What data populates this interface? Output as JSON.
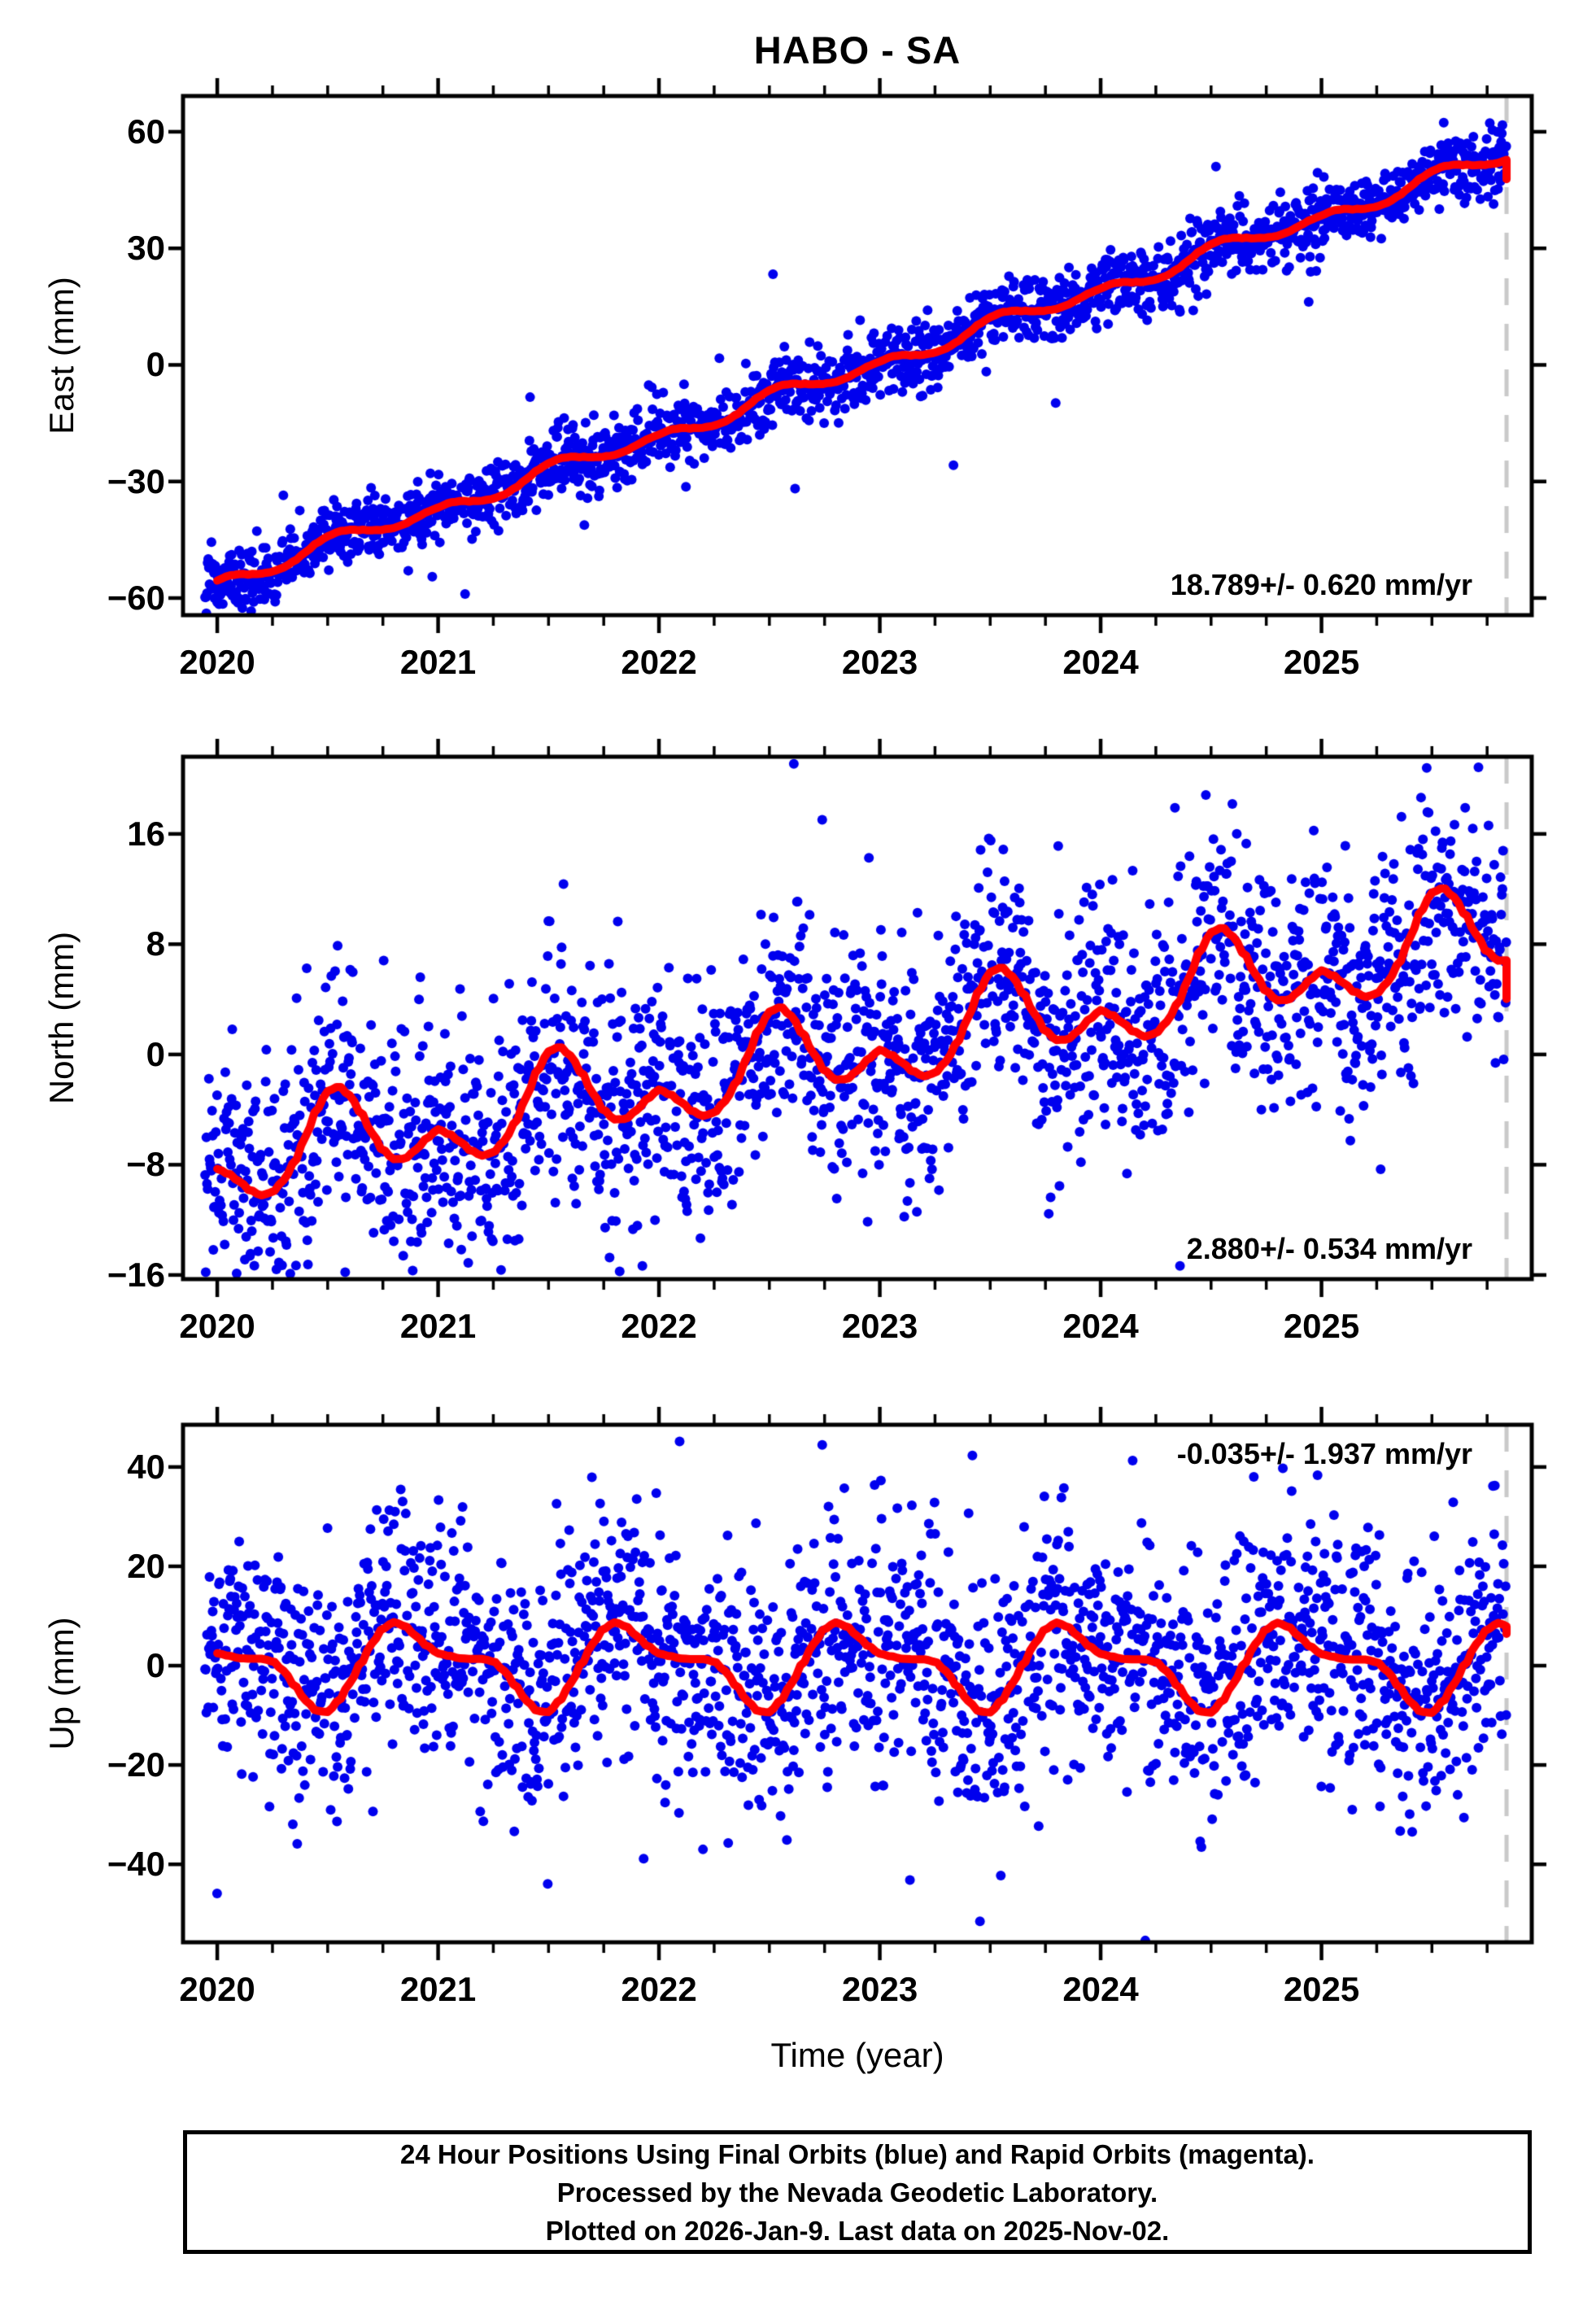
{
  "title": "HABO - SA",
  "xlabel": "Time (year)",
  "caption_lines": [
    "24 Hour Positions Using Final Orbits (blue) and Rapid Orbits (magenta).",
    "Processed by the Nevada Geodetic Laboratory.",
    "Plotted on 2026-Jan-9. Last data on 2025-Nov-02."
  ],
  "colors": {
    "final_orbits_points": "#0000ee",
    "rapid_orbits_points": "#ff00ff",
    "model_curve": "#ff0000",
    "last_data_dashed_line": "#c9c9c9",
    "axis": "#000000",
    "background": "#ffffff"
  },
  "time_axis": {
    "range": [
      2019.845,
      2025.952
    ],
    "major_ticks": [
      2020,
      2021,
      2022,
      2023,
      2024,
      2025
    ],
    "major_tick_labels": [
      "2020",
      "2021",
      "2022",
      "2023",
      "2024",
      "2025"
    ],
    "minor_tick_step_years": 0.25,
    "last_data_time": 2025.838
  },
  "chart_data": [
    {
      "type": "scatter",
      "component": "east",
      "ylabel": "East (mm)",
      "rate_text": "18.789+/- 0.620 mm/yr",
      "rate_mm_per_yr": 18.789,
      "rate_sigma_mm_per_yr": 0.62,
      "rate_label_position": "bottom-right",
      "ylim": [
        -64.4,
        69.2
      ],
      "yticks": [
        60,
        30,
        0,
        -30,
        -60
      ],
      "ytick_labels": [
        "60",
        "30",
        "0",
        "−30",
        "−60"
      ],
      "model_curve": {
        "t_start": 2020.0,
        "t_end": 2025.838,
        "intercept_2020_mm": -55.5,
        "slope_mm_per_yr": 18.789,
        "seasonal_mm": [
          0.0,
          0.3,
          -0.2,
          -1.2,
          -2.0,
          -2.4,
          -2.3,
          -1.5,
          -0.2,
          1.2,
          2.0,
          2.3,
          1.8,
          0.8,
          -0.2,
          -1.0,
          -1.5,
          -1.4,
          -0.8,
          -0.2
        ],
        "end_hook_mm": -5.0
      },
      "scatter": {
        "t_start": 2019.945,
        "t_end": 2025.838,
        "points_per_year": 350,
        "gap_fraction": 0.04,
        "sigma_mm": 4.3,
        "outlier_fraction": 0.013,
        "outlier_scale": 3.4,
        "seed": 101
      }
    },
    {
      "type": "scatter",
      "component": "north",
      "ylabel": "North (mm)",
      "rate_text": "2.880+/- 0.534 mm/yr",
      "rate_mm_per_yr": 2.88,
      "rate_sigma_mm_per_yr": 0.534,
      "rate_label_position": "bottom-right",
      "ylim": [
        -16.3,
        21.6
      ],
      "yticks": [
        16,
        8,
        0,
        -8,
        -16
      ],
      "ytick_labels": [
        "16",
        "8",
        "0",
        "−8",
        "−16"
      ],
      "model_curve": {
        "t_start": 2020.0,
        "t_end": 2025.838,
        "intercept_2020_mm": -8.3,
        "slope_mm_per_yr": 2.88,
        "seasonal_mm": [
          0.0,
          -0.5,
          -1.2,
          -2.0,
          -2.5,
          -2.4,
          -1.7,
          -0.5,
          1.2,
          3.0,
          4.2,
          4.4,
          3.6,
          2.2,
          0.6,
          -0.8,
          -1.6,
          -1.7,
          -1.2,
          -0.5
        ],
        "end_hook_mm": -2.8
      },
      "scatter": {
        "t_start": 2019.945,
        "t_end": 2025.838,
        "points_per_year": 350,
        "gap_fraction": 0.04,
        "sigma_mm": 4.4,
        "outlier_fraction": 0.015,
        "outlier_scale": 2.8,
        "seed": 202
      }
    },
    {
      "type": "scatter",
      "component": "up",
      "ylabel": "Up (mm)",
      "rate_text": "-0.035+/- 1.937 mm/yr",
      "rate_mm_per_yr": -0.035,
      "rate_sigma_mm_per_yr": 1.937,
      "rate_label_position": "top-right",
      "ylim": [
        -55.7,
        48.5
      ],
      "yticks": [
        40,
        20,
        0,
        -20,
        -40
      ],
      "ytick_labels": [
        "40",
        "20",
        "0",
        "−20",
        "−40"
      ],
      "model_curve": {
        "t_start": 2020.0,
        "t_end": 2025.838,
        "intercept_2020_mm": 0.5,
        "slope_mm_per_yr": -0.035,
        "seasonal_mm": [
          2.0,
          1.5,
          1.0,
          0.9,
          0.9,
          0.4,
          -1.5,
          -4.5,
          -7.5,
          -9.6,
          -9.8,
          -7.5,
          -4.0,
          0.0,
          4.0,
          7.0,
          8.3,
          7.5,
          5.5,
          3.5
        ],
        "end_hook_mm": -1.5
      },
      "scatter": {
        "t_start": 2019.945,
        "t_end": 2025.838,
        "points_per_year": 350,
        "gap_fraction": 0.04,
        "sigma_mm": 12.5,
        "outlier_fraction": 0.015,
        "outlier_scale": 2.6,
        "seed": 303
      }
    }
  ]
}
